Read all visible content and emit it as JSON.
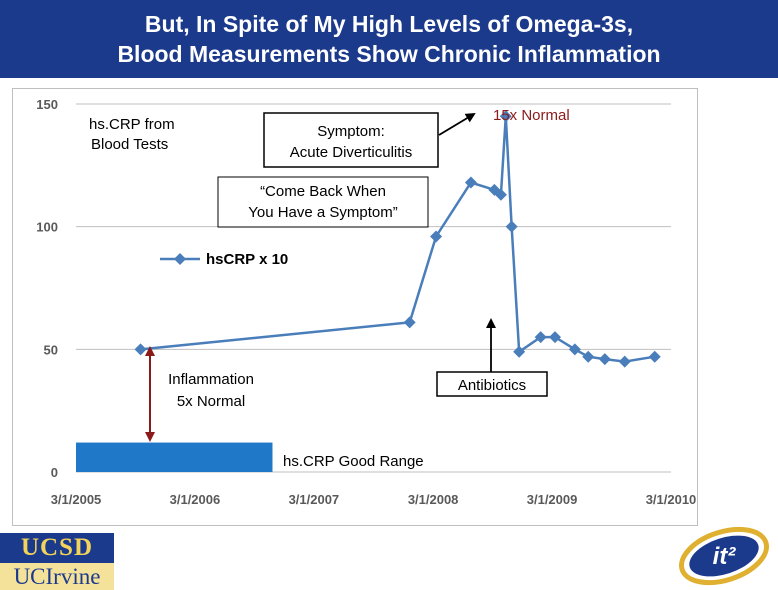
{
  "slide": {
    "title_line1": "But, In Spite of My High Levels of Omega-3s,",
    "title_line2": "Blood Measurements Show Chronic Inflammation"
  },
  "annotations": {
    "hscrp_from": "hs.CRP from",
    "blood_tests": "Blood Tests",
    "symptom_line1": "Symptom:",
    "symptom_line2": "Acute Diverticulitis",
    "come_back_line1": "“Come Back When",
    "come_back_line2": "You Have a Symptom”",
    "fifteen_x": "15x Normal",
    "inflammation_line1": "Inflammation",
    "inflammation_line2": "5x Normal",
    "antibiotics": "Antibiotics",
    "good_range": "hs.CRP Good Range"
  },
  "logos": {
    "ucsd": "UCSD",
    "uci": "UCIrvine",
    "it2": "it²"
  },
  "colors": {
    "title_bg": "#1b3a8c",
    "series": "#4a7ebb",
    "good_range": "#1f78c8",
    "arrow_red": "#8b1a1a"
  },
  "chart_data": {
    "type": "line",
    "x_ticks": [
      "3/1/2005",
      "3/1/2006",
      "3/1/2007",
      "3/1/2008",
      "3/1/2009",
      "3/1/2010"
    ],
    "y_ticks": [
      "0",
      "50",
      "100",
      "150"
    ],
    "ylim": [
      0,
      150
    ],
    "xlim": [
      "2005-03-01",
      "2010-03-01"
    ],
    "grid": "horizontal",
    "legend_position": "inside-left",
    "series": [
      {
        "name": "hsCRP x 10",
        "points": [
          {
            "x": "2005-09-15",
            "y": 50
          },
          {
            "x": "2007-12-20",
            "y": 61
          },
          {
            "x": "2008-03-10",
            "y": 96
          },
          {
            "x": "2008-06-25",
            "y": 118
          },
          {
            "x": "2008-09-05",
            "y": 115
          },
          {
            "x": "2008-09-25",
            "y": 113
          },
          {
            "x": "2008-10-10",
            "y": 145
          },
          {
            "x": "2008-10-28",
            "y": 100
          },
          {
            "x": "2008-11-20",
            "y": 49
          },
          {
            "x": "2009-01-25",
            "y": 55
          },
          {
            "x": "2009-03-10",
            "y": 55
          },
          {
            "x": "2009-05-10",
            "y": 50
          },
          {
            "x": "2009-06-20",
            "y": 47
          },
          {
            "x": "2009-08-10",
            "y": 46
          },
          {
            "x": "2009-10-10",
            "y": 45
          },
          {
            "x": "2010-01-10",
            "y": 47
          }
        ]
      }
    ],
    "good_range_band": {
      "x_start": "2005-03-01",
      "x_end": "2006-10-25",
      "y_min": 0,
      "y_max": 12
    }
  }
}
